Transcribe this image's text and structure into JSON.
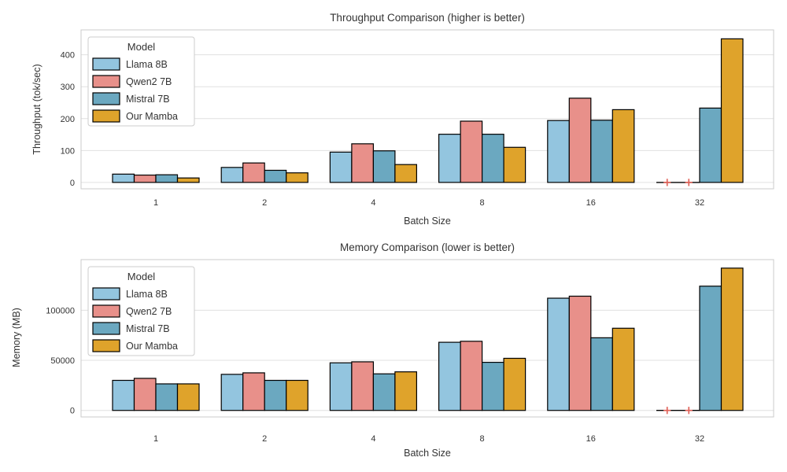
{
  "figure": {
    "background": "#FFFFFF",
    "text_color": "#333333",
    "grid_color": "#E0E0E0",
    "spine_color": "#CBCBCB"
  },
  "chart_data": [
    {
      "type": "bar",
      "title": "Throughput Comparison (higher is better)",
      "xlabel": "Batch Size",
      "ylabel": "Throughput (tok/sec)",
      "categories": [
        "1",
        "2",
        "4",
        "8",
        "16",
        "32"
      ],
      "series": [
        {
          "name": "Llama 8B",
          "color": "#93C5DF",
          "values": [
            26,
            47,
            95,
            151,
            194,
            null
          ]
        },
        {
          "name": "Qwen2 7B",
          "color": "#E8908A",
          "values": [
            23,
            61,
            121,
            192,
            264,
            null
          ]
        },
        {
          "name": "Mistral 7B",
          "color": "#6BA8C0",
          "values": [
            24,
            38,
            99,
            151,
            195,
            233
          ]
        },
        {
          "name": "Our Mamba",
          "color": "#DFA32B",
          "values": [
            14,
            30,
            56,
            110,
            228,
            450
          ]
        }
      ],
      "yticks": [
        0,
        100,
        200,
        300,
        400
      ],
      "ylim": [
        -20,
        478
      ],
      "grid": "horizontal",
      "legend_title": "Model",
      "legend_position": "upper left",
      "failed_marker": "+",
      "failed_marker_color": "#E0635A",
      "bar_edge_color": "#000000"
    },
    {
      "type": "bar",
      "title": "Memory Comparison (lower is better)",
      "xlabel": "Batch Size",
      "ylabel": "Memory (MB)",
      "categories": [
        "1",
        "2",
        "4",
        "8",
        "16",
        "32"
      ],
      "series": [
        {
          "name": "Llama 8B",
          "color": "#93C5DF",
          "values": [
            30000,
            36000,
            47500,
            68000,
            112000,
            null
          ]
        },
        {
          "name": "Qwen2 7B",
          "color": "#E8908A",
          "values": [
            32000,
            37500,
            48500,
            69000,
            114000,
            null
          ]
        },
        {
          "name": "Mistral 7B",
          "color": "#6BA8C0",
          "values": [
            26500,
            30000,
            36500,
            48000,
            72500,
            124000
          ]
        },
        {
          "name": "Our Mamba",
          "color": "#DFA32B",
          "values": [
            26500,
            30000,
            38500,
            52000,
            82000,
            142000
          ]
        }
      ],
      "yticks": [
        0,
        50000,
        100000
      ],
      "ylim": [
        -6500,
        150500
      ],
      "grid": "horizontal",
      "legend_title": "Model",
      "legend_position": "upper left",
      "failed_marker": "+",
      "failed_marker_color": "#E0635A",
      "bar_edge_color": "#000000"
    }
  ]
}
